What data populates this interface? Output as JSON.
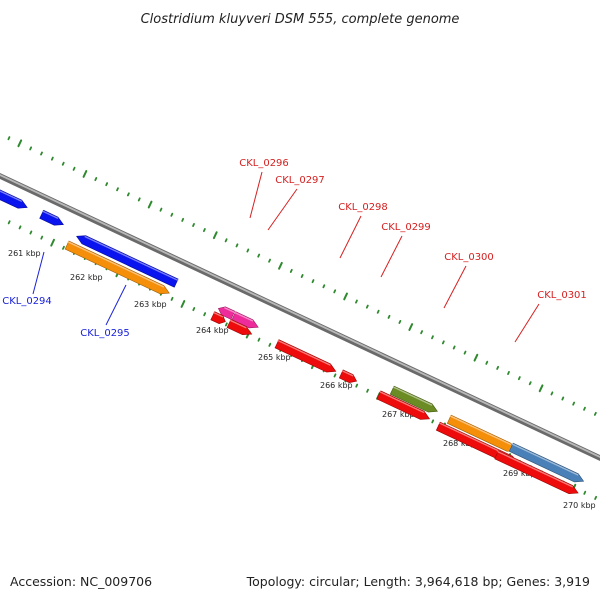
{
  "title": "Clostridium kluyveri DSM 555, complete genome",
  "footer": {
    "accession": "Accession: NC_009706",
    "summary": "Topology: circular; Length: 3,964,618 bp; Genes: 3,919"
  },
  "colors": {
    "blue": "#0a14ee",
    "orange": "#f58f0a",
    "red": "#ee0b0b",
    "magenta": "#ee2b9a",
    "olive": "#6b8c24",
    "steel": "#4a80b8",
    "dots": "#2f8a2f",
    "label_blue": "#1a22d8",
    "label_red": "#d62020"
  },
  "ticks": [
    "261 kbp",
    "262 kbp",
    "263 kbp",
    "264 kbp",
    "265 kbp",
    "266 kbp",
    "267 kbp",
    "268 kbp",
    "269 kbp",
    "270 kbp"
  ],
  "gene_labels": [
    {
      "text": "CKL_0294",
      "color": "blue"
    },
    {
      "text": "CKL_0295",
      "color": "blue"
    },
    {
      "text": "CKL_0296",
      "color": "red"
    },
    {
      "text": "CKL_0297",
      "color": "red"
    },
    {
      "text": "CKL_0298",
      "color": "red"
    },
    {
      "text": "CKL_0299",
      "color": "red"
    },
    {
      "text": "CKL_0300",
      "color": "red"
    },
    {
      "text": "CKL_0301",
      "color": "red"
    }
  ]
}
